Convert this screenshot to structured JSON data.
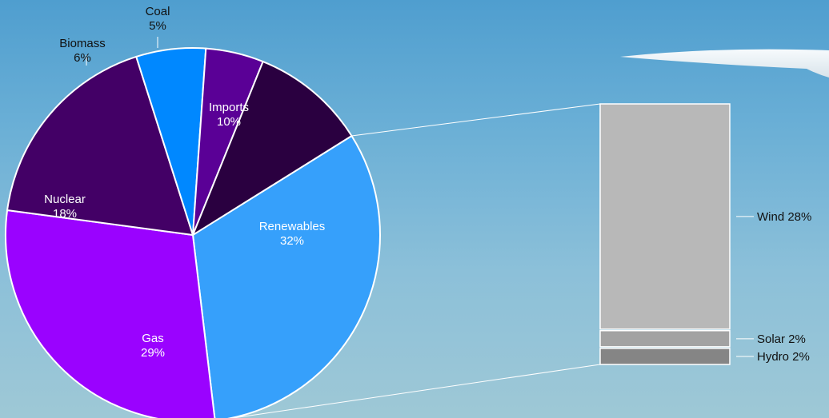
{
  "chart_data": {
    "type": "pie",
    "title": "",
    "slices": [
      {
        "label": "Renewables",
        "value": 32,
        "display": "32%",
        "color": "#36a0fb"
      },
      {
        "label": "Gas",
        "value": 29,
        "display": "29%",
        "color": "#9a02ff"
      },
      {
        "label": "Nuclear",
        "value": 18,
        "display": "18%",
        "color": "#430066"
      },
      {
        "label": "Biomass",
        "value": 6,
        "display": "6%",
        "color": "#0088ff"
      },
      {
        "label": "Coal",
        "value": 5,
        "display": "5%",
        "color": "#5a0096"
      },
      {
        "label": "Imports",
        "value": 10,
        "display": "10%",
        "color": "#2a0040"
      }
    ],
    "breakdown": {
      "parent": "Renewables",
      "type": "stacked_bar",
      "segments": [
        {
          "label": "Wind",
          "value": 28,
          "display": "Wind 28%",
          "color": "#b8b8b8"
        },
        {
          "label": "Solar",
          "value": 2,
          "display": "Solar 2%",
          "color": "#a2a2a2"
        },
        {
          "label": "Hydro",
          "value": 2,
          "display": "Hydro 2%",
          "color": "#858585"
        }
      ]
    }
  }
}
